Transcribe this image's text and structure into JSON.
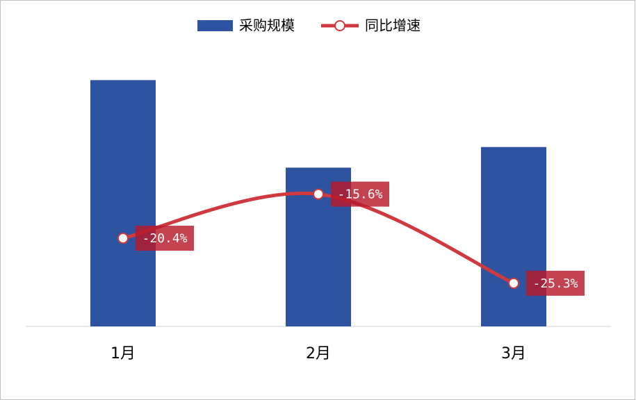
{
  "chart_data": {
    "type": "bar",
    "categories": [
      "1月",
      "2月",
      "3月"
    ],
    "ylim": [
      0,
      400
    ],
    "y2lim": [
      -30,
      1
    ],
    "series": [
      {
        "name": "采购规模",
        "type": "bar",
        "color": "#2e54a1",
        "values": [
          346,
          223,
          252
        ]
      },
      {
        "name": "同比增速",
        "type": "line",
        "axis": "y2",
        "color": "#d0393e",
        "values": [
          -20.4,
          -15.6,
          -25.3
        ],
        "value_labels": [
          "-20.4%",
          "-15.6%",
          "-25.3%"
        ]
      }
    ]
  }
}
